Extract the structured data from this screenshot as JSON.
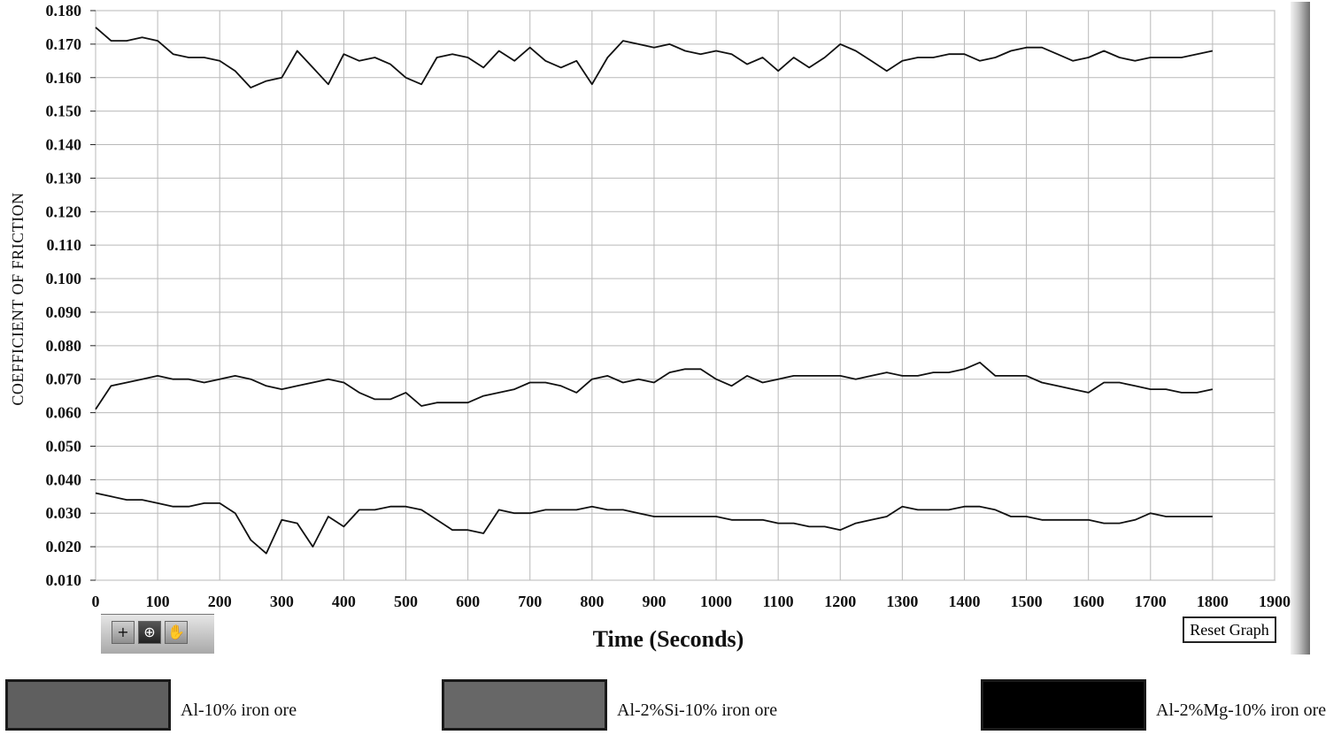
{
  "chart_data": {
    "type": "line",
    "title": "",
    "xlabel": "Time (Seconds)",
    "ylabel": "COEFFICIENT OF FRICTION",
    "xlim": [
      0,
      1900
    ],
    "ylim": [
      0.01,
      0.18
    ],
    "x_ticks": [
      "0",
      "100",
      "200",
      "300",
      "400",
      "500",
      "600",
      "700",
      "800",
      "900",
      "1000",
      "1100",
      "1200",
      "1300",
      "1400",
      "1500",
      "1600",
      "1700",
      "1800",
      "1900"
    ],
    "y_ticks": [
      "0.010",
      "0.020",
      "0.030",
      "0.040",
      "0.050",
      "0.060",
      "0.070",
      "0.080",
      "0.090",
      "0.100",
      "0.110",
      "0.120",
      "0.130",
      "0.140",
      "0.150",
      "0.160",
      "0.170",
      "0.180"
    ],
    "grid": true,
    "legend_position": "bottom",
    "series": [
      {
        "name": "Al-10% iron ore",
        "color": "#111111",
        "x": [
          0,
          25,
          50,
          75,
          100,
          125,
          150,
          175,
          200,
          225,
          250,
          275,
          300,
          325,
          350,
          375,
          400,
          425,
          450,
          475,
          500,
          525,
          550,
          575,
          600,
          625,
          650,
          675,
          700,
          725,
          750,
          775,
          800,
          825,
          850,
          875,
          900,
          925,
          950,
          975,
          1000,
          1025,
          1050,
          1075,
          1100,
          1125,
          1150,
          1175,
          1200,
          1225,
          1250,
          1275,
          1300,
          1325,
          1350,
          1375,
          1400,
          1425,
          1450,
          1475,
          1500,
          1525,
          1550,
          1575,
          1600,
          1625,
          1650,
          1675,
          1700,
          1725,
          1750,
          1775,
          1800
        ],
        "y": [
          0.175,
          0.171,
          0.171,
          0.172,
          0.171,
          0.167,
          0.166,
          0.166,
          0.165,
          0.162,
          0.157,
          0.159,
          0.16,
          0.168,
          0.163,
          0.158,
          0.167,
          0.165,
          0.166,
          0.164,
          0.16,
          0.158,
          0.166,
          0.167,
          0.166,
          0.163,
          0.168,
          0.165,
          0.169,
          0.165,
          0.163,
          0.165,
          0.158,
          0.166,
          0.171,
          0.17,
          0.169,
          0.17,
          0.168,
          0.167,
          0.168,
          0.167,
          0.164,
          0.166,
          0.162,
          0.166,
          0.163,
          0.166,
          0.17,
          0.168,
          0.165,
          0.162,
          0.165,
          0.166,
          0.166,
          0.167,
          0.167,
          0.165,
          0.166,
          0.168,
          0.169,
          0.169,
          0.167,
          0.165,
          0.166,
          0.168,
          0.166,
          0.165,
          0.166,
          0.166,
          0.166,
          0.167,
          0.168
        ]
      },
      {
        "name": "Al-2%Si-10% iron ore",
        "color": "#111111",
        "x": [
          0,
          25,
          50,
          75,
          100,
          125,
          150,
          175,
          200,
          225,
          250,
          275,
          300,
          325,
          350,
          375,
          400,
          425,
          450,
          475,
          500,
          525,
          550,
          575,
          600,
          625,
          650,
          675,
          700,
          725,
          750,
          775,
          800,
          825,
          850,
          875,
          900,
          925,
          950,
          975,
          1000,
          1025,
          1050,
          1075,
          1100,
          1125,
          1150,
          1175,
          1200,
          1225,
          1250,
          1275,
          1300,
          1325,
          1350,
          1375,
          1400,
          1425,
          1450,
          1475,
          1500,
          1525,
          1550,
          1575,
          1600,
          1625,
          1650,
          1675,
          1700,
          1725,
          1750,
          1775,
          1800
        ],
        "y": [
          0.061,
          0.068,
          0.069,
          0.07,
          0.071,
          0.07,
          0.07,
          0.069,
          0.07,
          0.071,
          0.07,
          0.068,
          0.067,
          0.068,
          0.069,
          0.07,
          0.069,
          0.066,
          0.064,
          0.064,
          0.066,
          0.062,
          0.063,
          0.063,
          0.063,
          0.065,
          0.066,
          0.067,
          0.069,
          0.069,
          0.068,
          0.066,
          0.07,
          0.071,
          0.069,
          0.07,
          0.069,
          0.072,
          0.073,
          0.073,
          0.07,
          0.068,
          0.071,
          0.069,
          0.07,
          0.071,
          0.071,
          0.071,
          0.071,
          0.07,
          0.071,
          0.072,
          0.071,
          0.071,
          0.072,
          0.072,
          0.073,
          0.075,
          0.071,
          0.071,
          0.071,
          0.069,
          0.068,
          0.067,
          0.066,
          0.069,
          0.069,
          0.068,
          0.067,
          0.067,
          0.066,
          0.066,
          0.067
        ]
      },
      {
        "name": "Al-2%Mg-10% iron ore",
        "color": "#111111",
        "x": [
          0,
          25,
          50,
          75,
          100,
          125,
          150,
          175,
          200,
          225,
          250,
          275,
          300,
          325,
          350,
          375,
          400,
          425,
          450,
          475,
          500,
          525,
          550,
          575,
          600,
          625,
          650,
          675,
          700,
          725,
          750,
          775,
          800,
          825,
          850,
          875,
          900,
          925,
          950,
          975,
          1000,
          1025,
          1050,
          1075,
          1100,
          1125,
          1150,
          1175,
          1200,
          1225,
          1250,
          1275,
          1300,
          1325,
          1350,
          1375,
          1400,
          1425,
          1450,
          1475,
          1500,
          1525,
          1550,
          1575,
          1600,
          1625,
          1650,
          1675,
          1700,
          1725,
          1750,
          1775,
          1800
        ],
        "y": [
          0.036,
          0.035,
          0.034,
          0.034,
          0.033,
          0.032,
          0.032,
          0.033,
          0.033,
          0.03,
          0.022,
          0.018,
          0.028,
          0.027,
          0.02,
          0.029,
          0.026,
          0.031,
          0.031,
          0.032,
          0.032,
          0.031,
          0.028,
          0.025,
          0.025,
          0.024,
          0.031,
          0.03,
          0.03,
          0.031,
          0.031,
          0.031,
          0.032,
          0.031,
          0.031,
          0.03,
          0.029,
          0.029,
          0.029,
          0.029,
          0.029,
          0.028,
          0.028,
          0.028,
          0.027,
          0.027,
          0.026,
          0.026,
          0.025,
          0.027,
          0.028,
          0.029,
          0.032,
          0.031,
          0.031,
          0.031,
          0.032,
          0.032,
          0.031,
          0.029,
          0.029,
          0.028,
          0.028,
          0.028,
          0.028,
          0.027,
          0.027,
          0.028,
          0.03,
          0.029,
          0.029,
          0.029,
          0.029
        ]
      }
    ]
  },
  "ui": {
    "reset_label": "Reset Graph"
  },
  "legend": [
    {
      "label": "Al-10% iron ore",
      "color": "#5f5f5f"
    },
    {
      "label": "Al-2%Si-10% iron ore",
      "color": "#676767"
    },
    {
      "label": "Al-2%Mg-10% iron ore",
      "color": "#000000"
    }
  ],
  "icons": [
    "crosshair-icon",
    "zoom-icon",
    "pan-hand-icon"
  ]
}
